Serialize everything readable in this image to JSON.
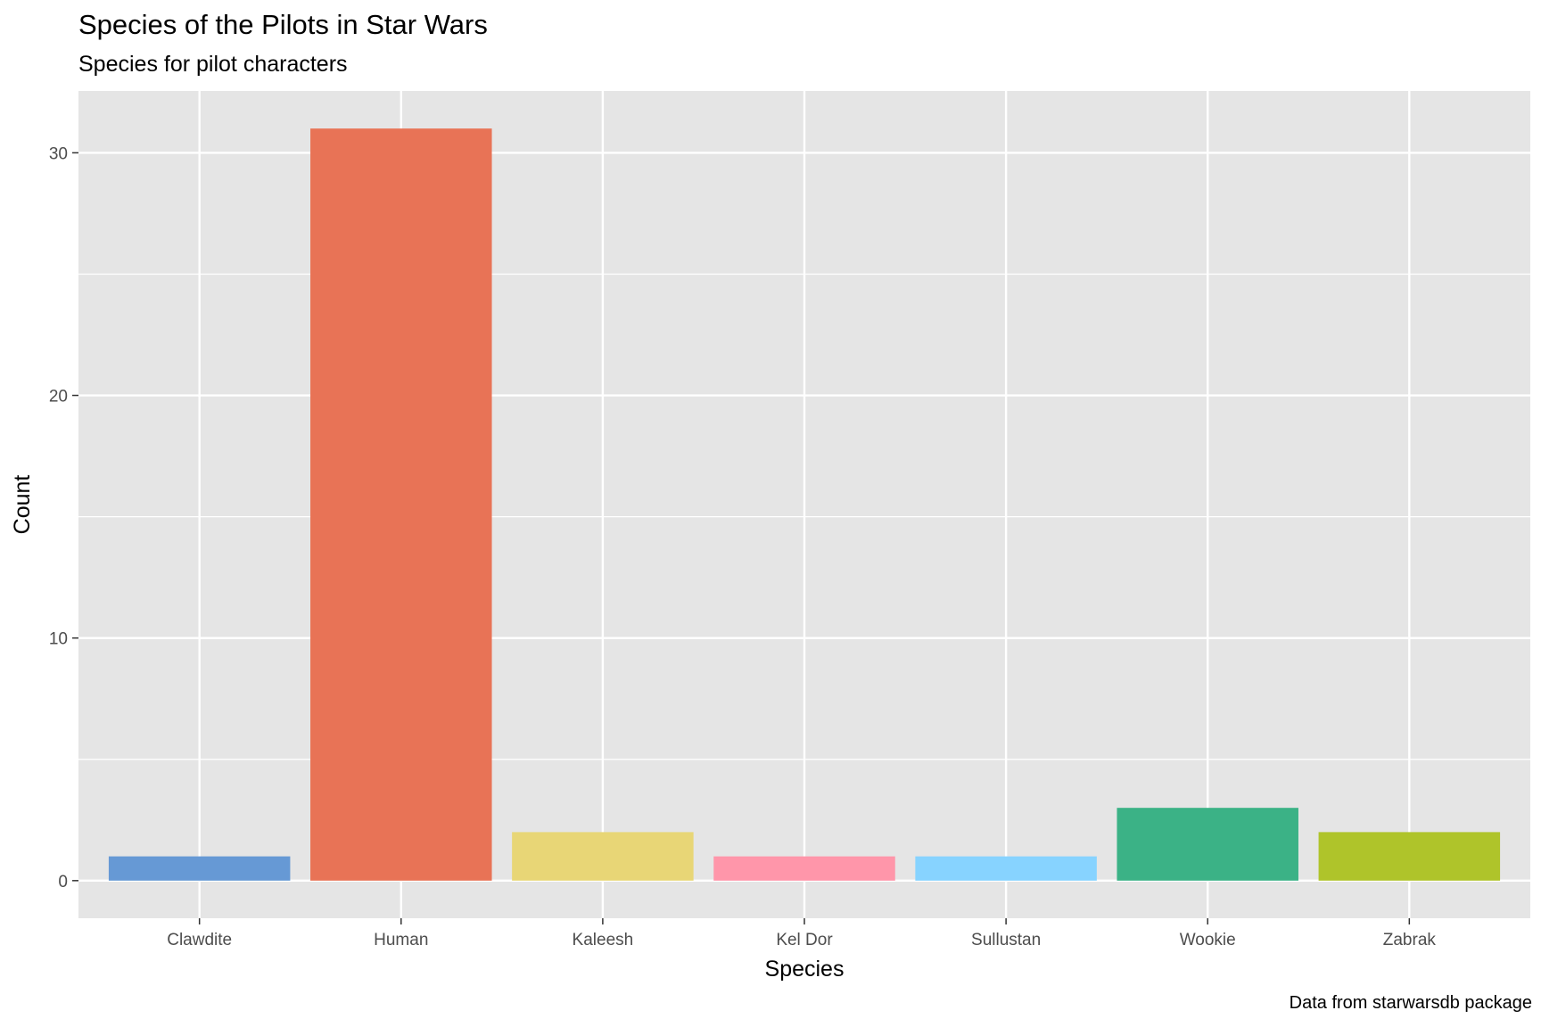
{
  "chart_data": {
    "type": "bar",
    "title": "Species of the Pilots in Star Wars",
    "subtitle": "Species for pilot characters",
    "caption": "Data from starwarsdb package",
    "xlabel": "Species",
    "ylabel": "Count",
    "categories": [
      "Clawdite",
      "Human",
      "Kaleesh",
      "Kel Dor",
      "Sullustan",
      "Wookie",
      "Zabrak"
    ],
    "values": [
      1,
      31,
      2,
      1,
      1,
      3,
      2
    ],
    "colors": [
      "#6699D5",
      "#E87356",
      "#E8D676",
      "#FF96AA",
      "#87D3FF",
      "#3BB286",
      "#AFC42A"
    ],
    "yticks": [
      0,
      10,
      20,
      30
    ],
    "ylim": [
      -1.55,
      32.55
    ],
    "grid": true,
    "legend": "none",
    "panel_background": "#E5E5E5"
  }
}
